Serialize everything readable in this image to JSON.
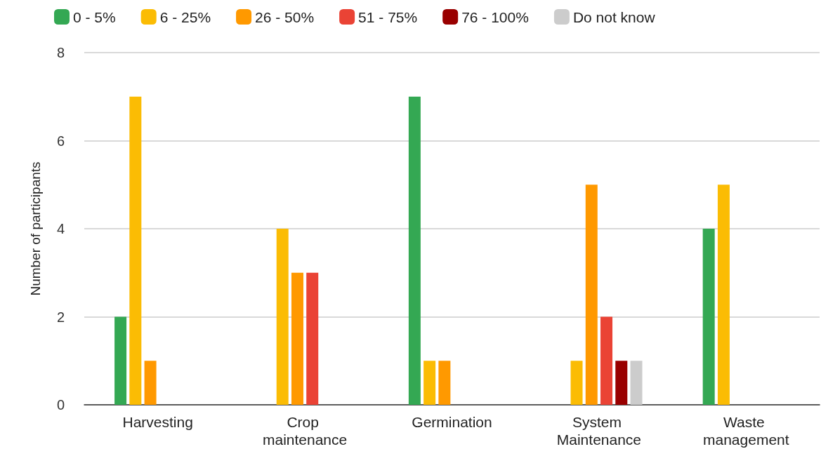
{
  "chart_data": {
    "type": "bar",
    "ylabel": "Number of participants",
    "categories": [
      "Harvesting",
      "Crop maintenance",
      "Germination",
      "System Maintenance",
      "Waste management"
    ],
    "series": [
      {
        "name": "0 - 5%",
        "color": "#34a853",
        "values": [
          2,
          0,
          7,
          0,
          4
        ]
      },
      {
        "name": "6 - 25%",
        "color": "#fbbc04",
        "values": [
          7,
          4,
          1,
          1,
          5
        ]
      },
      {
        "name": "26 - 50%",
        "color": "#ff9900",
        "values": [
          1,
          3,
          1,
          5,
          0
        ]
      },
      {
        "name": "51 - 75%",
        "color": "#ea4335",
        "values": [
          0,
          3,
          0,
          2,
          0
        ]
      },
      {
        "name": "76 - 100%",
        "color": "#990000",
        "values": [
          0,
          0,
          0,
          1,
          0
        ]
      },
      {
        "name": "Do not know",
        "color": "#cccccc",
        "values": [
          0,
          0,
          0,
          1,
          0
        ]
      }
    ],
    "ylim": [
      0,
      8
    ],
    "yticks": [
      0,
      2,
      4,
      6,
      8
    ],
    "grid": "y",
    "legend": "top left"
  }
}
